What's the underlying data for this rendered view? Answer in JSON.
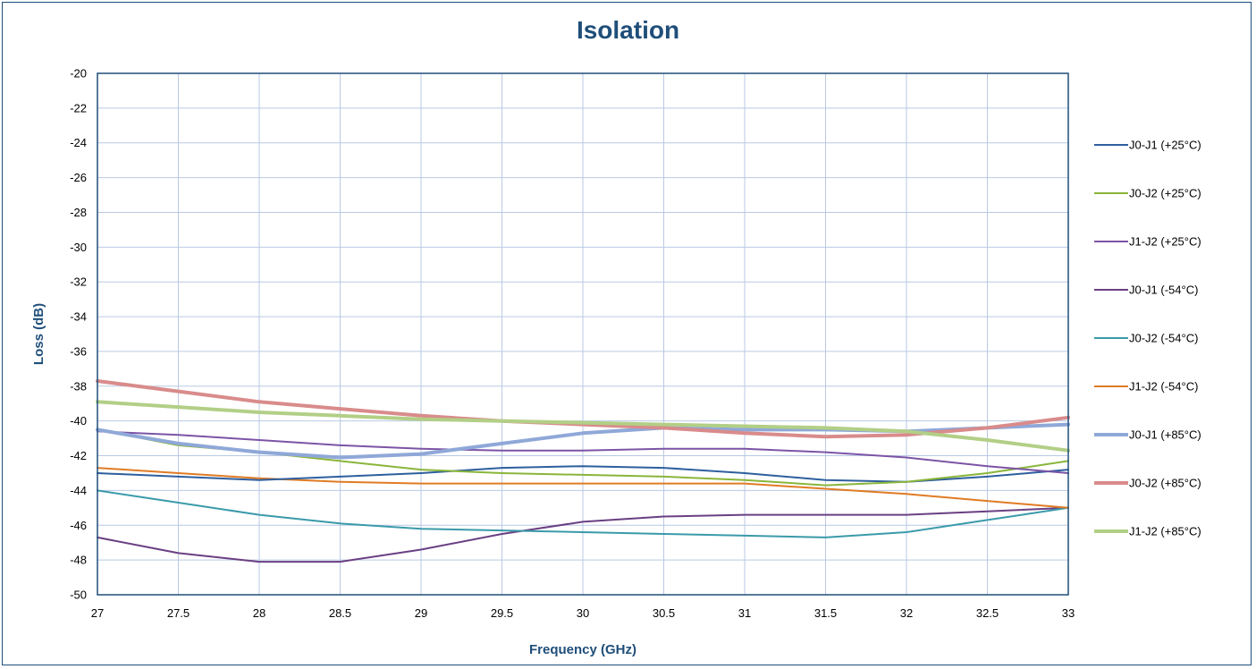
{
  "chart_data": {
    "type": "line",
    "title": "Isolation",
    "xlabel": "Frequency (GHz)",
    "ylabel": "Loss (dB)",
    "xlim": [
      27,
      33
    ],
    "ylim": [
      -50,
      -20
    ],
    "x_ticks": [
      "27",
      "27.5",
      "28",
      "28.5",
      "29",
      "29.5",
      "30",
      "30.5",
      "31",
      "31.5",
      "32",
      "32.5",
      "33"
    ],
    "y_ticks": [
      "-20",
      "-22",
      "-24",
      "-26",
      "-28",
      "-30",
      "-32",
      "-34",
      "-36",
      "-38",
      "-40",
      "-42",
      "-44",
      "-46",
      "-48",
      "-50"
    ],
    "grid": true,
    "legend_position": "right",
    "x": [
      27,
      27.5,
      28,
      28.5,
      29,
      29.5,
      30,
      30.5,
      31,
      31.5,
      32,
      32.5,
      33
    ],
    "series": [
      {
        "name": "J0-J1 (+25°C)",
        "color": "#2e5f9e",
        "width": 2,
        "values": [
          -43.0,
          -43.2,
          -43.4,
          -43.2,
          -43.0,
          -42.7,
          -42.6,
          -42.7,
          -43.0,
          -43.4,
          -43.5,
          -43.2,
          -42.8
        ]
      },
      {
        "name": "J0-J2 (+25°C)",
        "color": "#8ab53a",
        "width": 2,
        "values": [
          -40.5,
          -41.4,
          -41.8,
          -42.3,
          -42.8,
          -43.0,
          -43.1,
          -43.2,
          -43.4,
          -43.7,
          -43.5,
          -43.0,
          -42.3
        ]
      },
      {
        "name": "J1-J2 (+25°C)",
        "color": "#7c54a6",
        "width": 2,
        "values": [
          -40.6,
          -40.8,
          -41.1,
          -41.4,
          -41.6,
          -41.7,
          -41.7,
          -41.6,
          -41.6,
          -41.8,
          -42.1,
          -42.6,
          -43.0
        ]
      },
      {
        "name": "J0-J1 (-54°C)",
        "color": "#6a3f83",
        "width": 2,
        "values": [
          -46.7,
          -47.6,
          -48.1,
          -48.1,
          -47.4,
          -46.5,
          -45.8,
          -45.5,
          -45.4,
          -45.4,
          -45.4,
          -45.2,
          -45.0
        ]
      },
      {
        "name": "J0-J2 (-54°C)",
        "color": "#3a9aaa",
        "width": 2,
        "values": [
          -44.0,
          -44.7,
          -45.4,
          -45.9,
          -46.2,
          -46.3,
          -46.4,
          -46.5,
          -46.6,
          -46.7,
          -46.4,
          -45.7,
          -45.0
        ]
      },
      {
        "name": "J1-J2 (-54°C)",
        "color": "#e07b24",
        "width": 2,
        "values": [
          -42.7,
          -43.0,
          -43.3,
          -43.5,
          -43.6,
          -43.6,
          -43.6,
          -43.6,
          -43.6,
          -43.9,
          -44.2,
          -44.6,
          -45.0
        ]
      },
      {
        "name": "J0-J1 (+85°C)",
        "color": "#8fa8d8",
        "width": 4,
        "values": [
          -40.5,
          -41.3,
          -41.8,
          -42.1,
          -41.9,
          -41.3,
          -40.7,
          -40.4,
          -40.5,
          -40.5,
          -40.6,
          -40.4,
          -40.2
        ]
      },
      {
        "name": "J0-J2 (+85°C)",
        "color": "#d98b8b",
        "width": 4,
        "values": [
          -37.7,
          -38.3,
          -38.9,
          -39.3,
          -39.7,
          -40.0,
          -40.2,
          -40.4,
          -40.7,
          -40.9,
          -40.8,
          -40.4,
          -39.8
        ]
      },
      {
        "name": "J1-J2 (+85°C)",
        "color": "#b2cf86",
        "width": 4,
        "values": [
          -38.9,
          -39.2,
          -39.5,
          -39.7,
          -39.9,
          -40.0,
          -40.1,
          -40.2,
          -40.3,
          -40.4,
          -40.6,
          -41.1,
          -41.7
        ]
      }
    ]
  }
}
